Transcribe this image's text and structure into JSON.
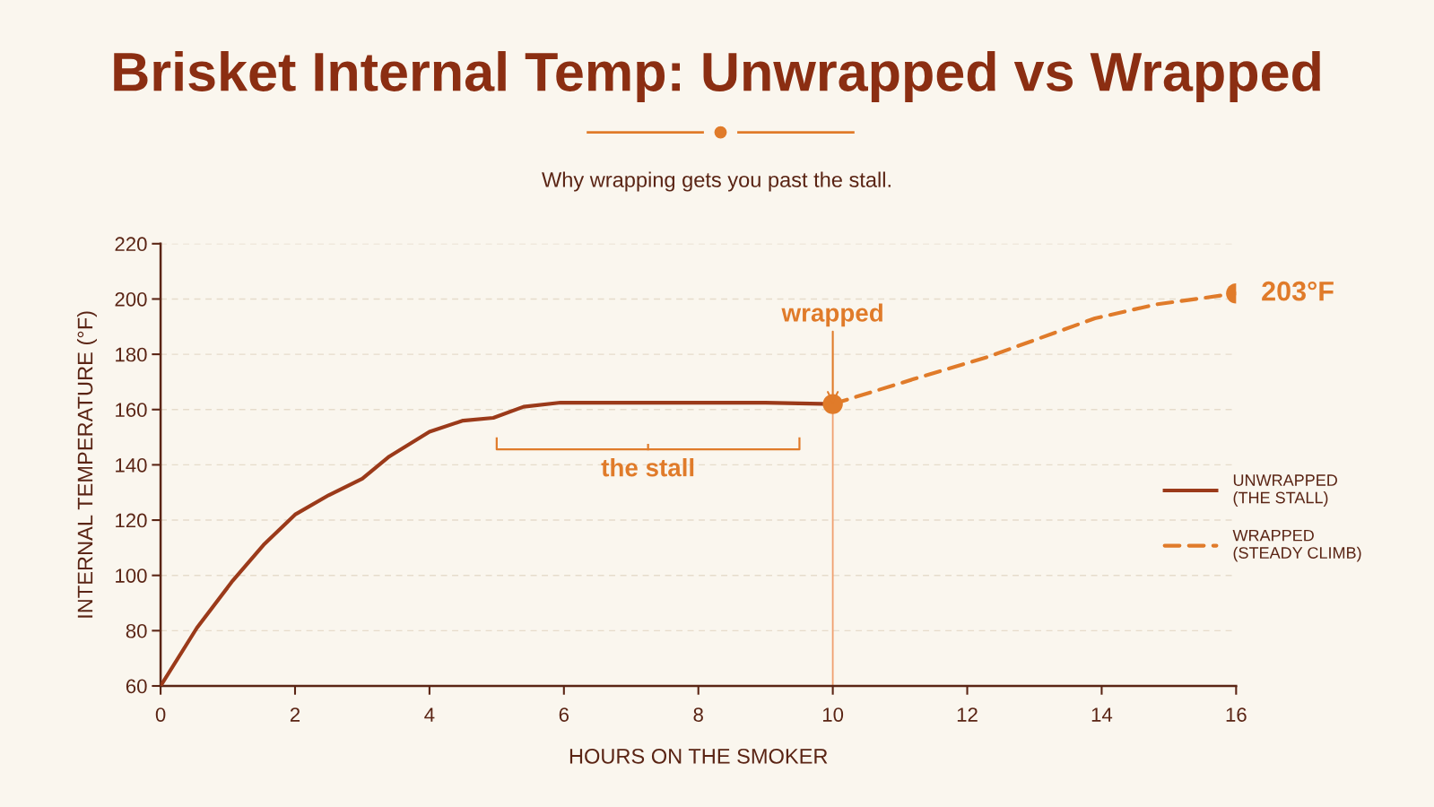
{
  "chart_data": {
    "type": "line",
    "title": "Brisket Internal Temp: Unwrapped vs Wrapped",
    "subtitle": "Why wrapping gets you past the stall.",
    "xlabel": "HOURS ON THE SMOKER",
    "ylabel": "INTERNAL TEMPERATURE (°F)",
    "xlim": [
      0,
      16
    ],
    "xticks": [
      0,
      2,
      4,
      6,
      8,
      10,
      12,
      14,
      16
    ],
    "ylim": [
      60,
      220
    ],
    "yticks": [
      60,
      80,
      100,
      120,
      140,
      160,
      180,
      200,
      220
    ],
    "grid": "y",
    "legend": "right",
    "series": [
      {
        "name": "UNWRAPPED\n(THE STALL)",
        "color": "#9b3a1a",
        "line_style": "solid",
        "x": [
          0,
          0.54,
          1.07,
          1.53,
          2,
          2.5,
          3,
          3.4,
          4,
          4.5,
          4.95,
          5.4,
          5.95,
          7,
          8,
          9,
          10
        ],
        "values": [
          60,
          81,
          98,
          111,
          122,
          129,
          135,
          143,
          152,
          156,
          157,
          161,
          162.5,
          162.5,
          162.5,
          162.5,
          162
        ]
      },
      {
        "name": "WRAPPED\n(STEADY CLIMB)",
        "color": "#e07b2a",
        "line_style": "dashed",
        "x": [
          10,
          11.2,
          12.3,
          13.9,
          14.8,
          16
        ],
        "values": [
          162,
          171,
          179,
          193,
          198,
          202
        ]
      },
      {
        "type": "scatter",
        "color": "#e07b2a",
        "marker": "circle",
        "x": [
          10,
          16
        ],
        "values": [
          162,
          202
        ]
      }
    ],
    "ref_lines": [
      {
        "axis": "x",
        "value": 10,
        "color": "#f0a070",
        "line_style": "solid"
      }
    ],
    "annotations": [
      {
        "text": "wrapped",
        "x": 10,
        "y": 162
      },
      {
        "text": "203°F",
        "x": 16,
        "y": 202
      },
      "the stall"
    ]
  }
}
